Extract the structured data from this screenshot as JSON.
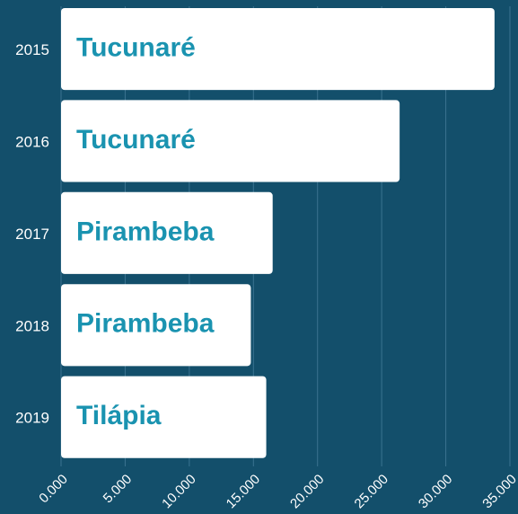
{
  "chart_data": {
    "type": "hbar",
    "categories": [
      "2015",
      "2016",
      "2017",
      "2018",
      "2019"
    ],
    "values": [
      33800,
      26400,
      16500,
      14800,
      16000
    ],
    "bar_labels": [
      "Tucunaré",
      "Tucunaré",
      "Pirambeba",
      "Pirambeba",
      "Tilápia"
    ],
    "color": "#ffffff",
    "label_color": "#1a93b0",
    "xlim": [
      0,
      35000
    ],
    "xticks": [
      {
        "value": 0,
        "label": "0.000"
      },
      {
        "value": 5000,
        "label": "5.000"
      },
      {
        "value": 10000,
        "label": "10.000"
      },
      {
        "value": 15000,
        "label": "15.000"
      },
      {
        "value": 20000,
        "label": "20.000"
      },
      {
        "value": 25000,
        "label": "25.000"
      },
      {
        "value": 30000,
        "label": "30.000"
      },
      {
        "value": 35000,
        "label": "35.000"
      }
    ],
    "grid": true
  }
}
